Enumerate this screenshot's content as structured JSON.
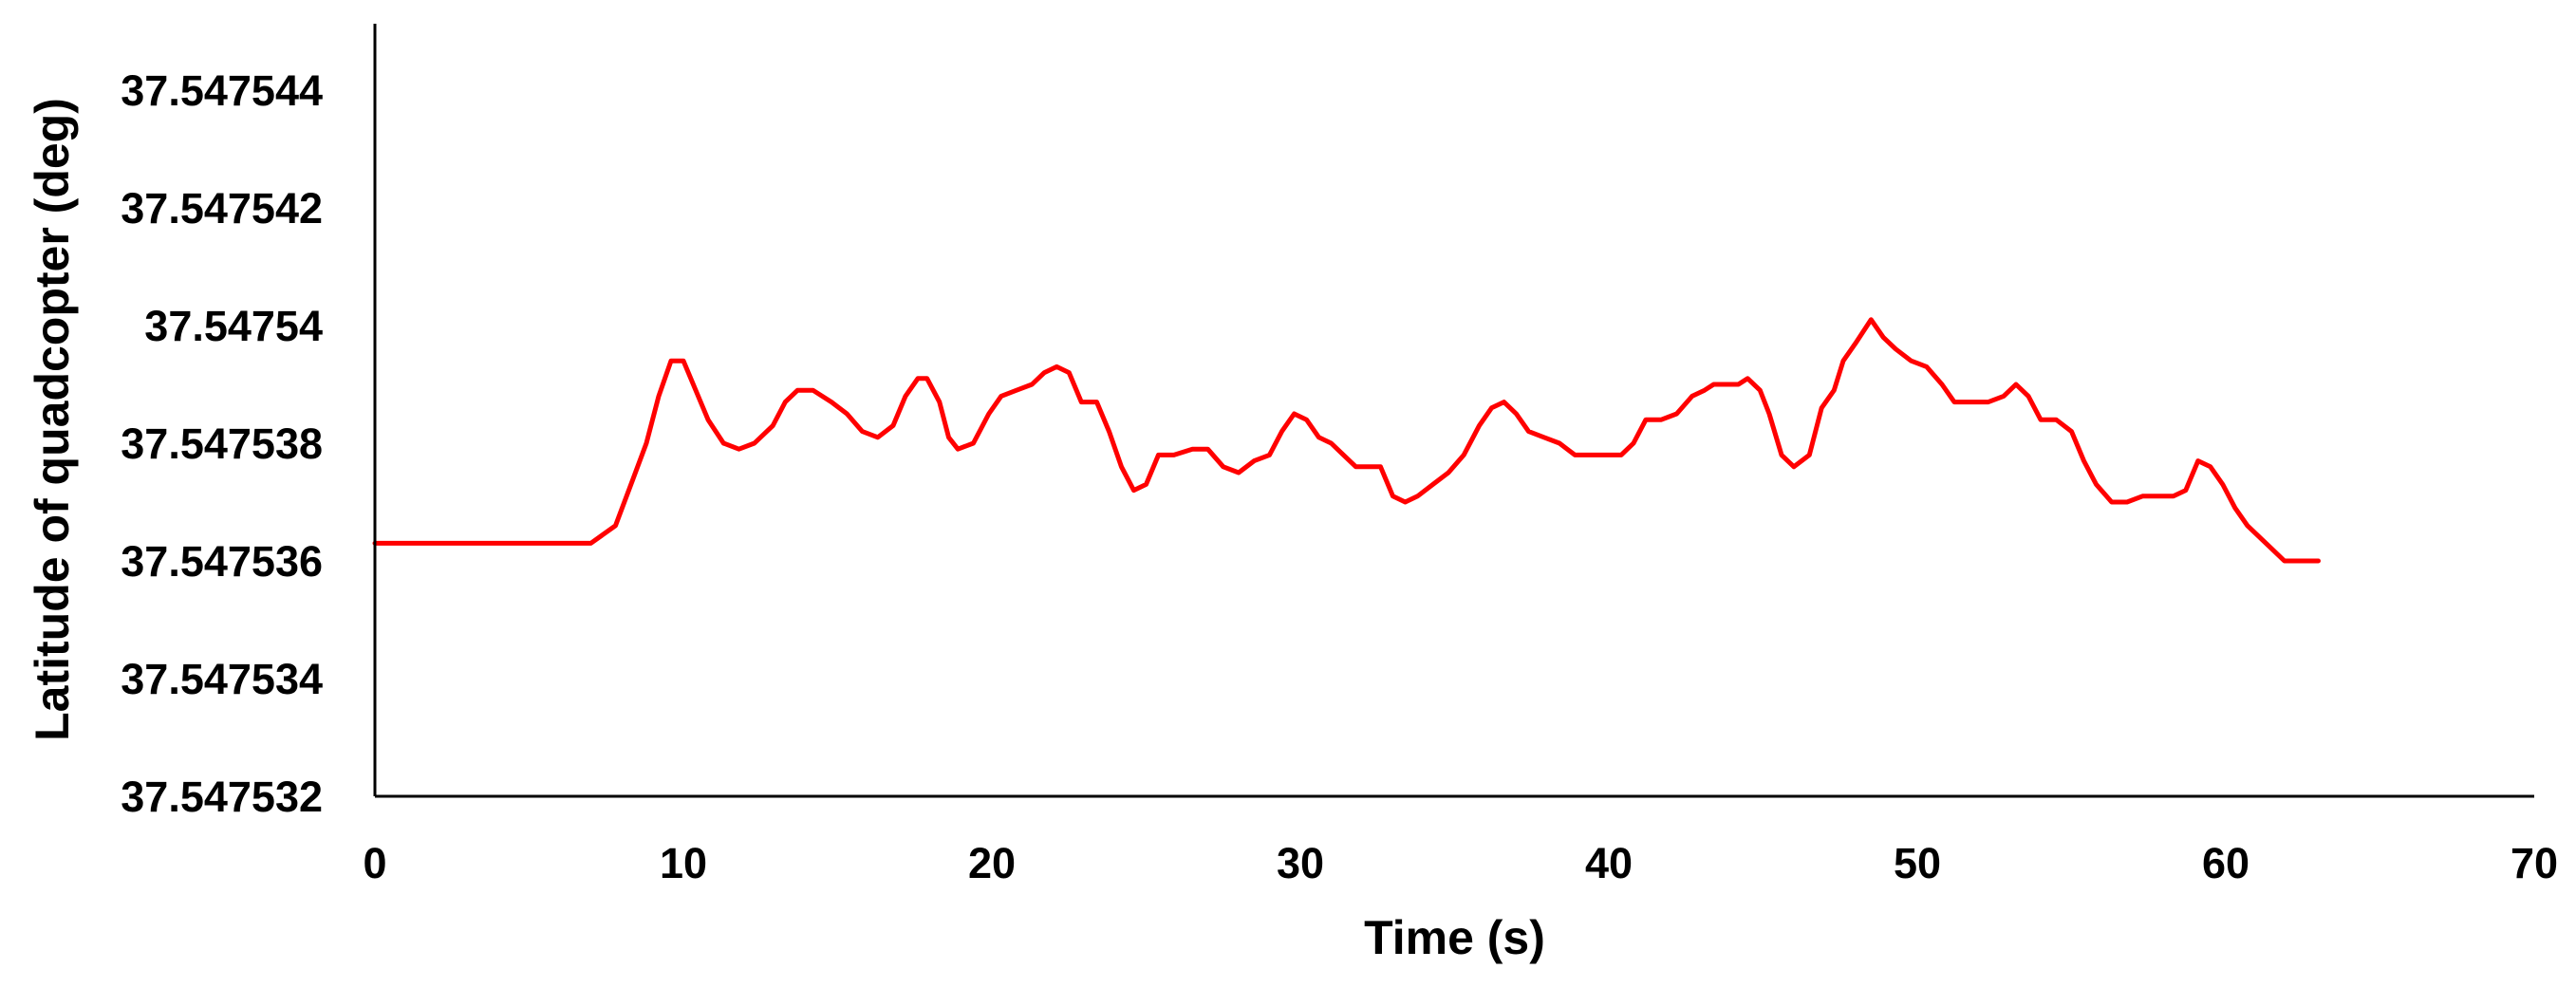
{
  "chart_data": {
    "type": "line",
    "title": "",
    "xlabel": "Time (s)",
    "ylabel": "Latitude of quadcopter (deg)",
    "xlim": [
      0,
      70
    ],
    "ylim": [
      37.547532,
      37.547545
    ],
    "x_ticks": [
      {
        "value": 0,
        "label": "0"
      },
      {
        "value": 10,
        "label": "10"
      },
      {
        "value": 20,
        "label": "20"
      },
      {
        "value": 30,
        "label": "30"
      },
      {
        "value": 40,
        "label": "40"
      },
      {
        "value": 50,
        "label": "50"
      },
      {
        "value": 60,
        "label": "60"
      },
      {
        "value": 70,
        "label": "70"
      }
    ],
    "y_ticks": [
      {
        "value": 37.547532,
        "label": "37.547532"
      },
      {
        "value": 37.547534,
        "label": "37.547534"
      },
      {
        "value": 37.547536,
        "label": "37.547536"
      },
      {
        "value": 37.547538,
        "label": "37.547538"
      },
      {
        "value": 37.54754,
        "label": "37.54754"
      },
      {
        "value": 37.547542,
        "label": "37.547542"
      },
      {
        "value": 37.547544,
        "label": "37.547544"
      }
    ],
    "grid": false,
    "legend": "none",
    "series": [
      {
        "color": "#ff0000",
        "points": [
          [
            0,
            37.5475363
          ],
          [
            7.0,
            37.5475363
          ],
          [
            7.8,
            37.5475366
          ],
          [
            8.3,
            37.5475373
          ],
          [
            8.8,
            37.547538
          ],
          [
            9.2,
            37.5475388
          ],
          [
            9.6,
            37.5475394
          ],
          [
            10.0,
            37.5475394
          ],
          [
            10.4,
            37.5475389
          ],
          [
            10.8,
            37.5475384
          ],
          [
            11.3,
            37.547538
          ],
          [
            11.8,
            37.5475379
          ],
          [
            12.3,
            37.547538
          ],
          [
            12.9,
            37.5475383
          ],
          [
            13.3,
            37.5475387
          ],
          [
            13.7,
            37.5475389
          ],
          [
            14.2,
            37.5475389
          ],
          [
            14.8,
            37.5475387
          ],
          [
            15.3,
            37.5475385
          ],
          [
            15.8,
            37.5475382
          ],
          [
            16.3,
            37.5475381
          ],
          [
            16.8,
            37.5475383
          ],
          [
            17.2,
            37.5475388
          ],
          [
            17.6,
            37.5475391
          ],
          [
            17.9,
            37.5475391
          ],
          [
            18.3,
            37.5475387
          ],
          [
            18.6,
            37.5475381
          ],
          [
            18.9,
            37.5475379
          ],
          [
            19.4,
            37.547538
          ],
          [
            19.9,
            37.5475385
          ],
          [
            20.3,
            37.5475388
          ],
          [
            20.8,
            37.5475389
          ],
          [
            21.3,
            37.547539
          ],
          [
            21.7,
            37.5475392
          ],
          [
            22.1,
            37.5475393
          ],
          [
            22.5,
            37.5475392
          ],
          [
            22.9,
            37.5475387
          ],
          [
            23.4,
            37.5475387
          ],
          [
            23.8,
            37.5475382
          ],
          [
            24.2,
            37.5475376
          ],
          [
            24.6,
            37.5475372
          ],
          [
            25.0,
            37.5475373
          ],
          [
            25.4,
            37.5475378
          ],
          [
            25.9,
            37.5475378
          ],
          [
            26.5,
            37.5475379
          ],
          [
            27.0,
            37.5475379
          ],
          [
            27.5,
            37.5475376
          ],
          [
            28.0,
            37.5475375
          ],
          [
            28.5,
            37.5475377
          ],
          [
            29.0,
            37.5475378
          ],
          [
            29.4,
            37.5475382
          ],
          [
            29.8,
            37.5475385
          ],
          [
            30.2,
            37.5475384
          ],
          [
            30.6,
            37.5475381
          ],
          [
            31.0,
            37.547538
          ],
          [
            31.4,
            37.5475378
          ],
          [
            31.8,
            37.5475376
          ],
          [
            32.2,
            37.5475376
          ],
          [
            32.6,
            37.5475376
          ],
          [
            33.0,
            37.5475371
          ],
          [
            33.4,
            37.547537
          ],
          [
            33.8,
            37.5475371
          ],
          [
            34.3,
            37.5475373
          ],
          [
            34.8,
            37.5475375
          ],
          [
            35.3,
            37.5475378
          ],
          [
            35.8,
            37.5475383
          ],
          [
            36.2,
            37.5475386
          ],
          [
            36.6,
            37.5475387
          ],
          [
            37.0,
            37.5475385
          ],
          [
            37.4,
            37.5475382
          ],
          [
            37.9,
            37.5475381
          ],
          [
            38.4,
            37.547538
          ],
          [
            38.9,
            37.5475378
          ],
          [
            39.4,
            37.5475378
          ],
          [
            39.9,
            37.5475378
          ],
          [
            40.4,
            37.5475378
          ],
          [
            40.8,
            37.547538
          ],
          [
            41.2,
            37.5475384
          ],
          [
            41.7,
            37.5475384
          ],
          [
            42.2,
            37.5475385
          ],
          [
            42.7,
            37.5475388
          ],
          [
            43.1,
            37.5475389
          ],
          [
            43.4,
            37.547539
          ],
          [
            43.8,
            37.547539
          ],
          [
            44.2,
            37.547539
          ],
          [
            44.5,
            37.5475391
          ],
          [
            44.9,
            37.5475389
          ],
          [
            45.2,
            37.5475385
          ],
          [
            45.6,
            37.5475378
          ],
          [
            46.0,
            37.5475376
          ],
          [
            46.5,
            37.5475378
          ],
          [
            46.9,
            37.5475386
          ],
          [
            47.3,
            37.5475389
          ],
          [
            47.6,
            37.5475394
          ],
          [
            48.0,
            37.5475397
          ],
          [
            48.5,
            37.5475401
          ],
          [
            48.9,
            37.5475398
          ],
          [
            49.3,
            37.5475396
          ],
          [
            49.8,
            37.5475394
          ],
          [
            50.3,
            37.5475393
          ],
          [
            50.8,
            37.547539
          ],
          [
            51.2,
            37.5475387
          ],
          [
            51.8,
            37.5475387
          ],
          [
            52.3,
            37.5475387
          ],
          [
            52.8,
            37.5475388
          ],
          [
            53.2,
            37.547539
          ],
          [
            53.6,
            37.5475388
          ],
          [
            54.0,
            37.5475384
          ],
          [
            54.5,
            37.5475384
          ],
          [
            55.0,
            37.5475382
          ],
          [
            55.4,
            37.5475377
          ],
          [
            55.8,
            37.5475373
          ],
          [
            56.3,
            37.547537
          ],
          [
            56.8,
            37.547537
          ],
          [
            57.3,
            37.5475371
          ],
          [
            57.8,
            37.5475371
          ],
          [
            58.3,
            37.5475371
          ],
          [
            58.7,
            37.5475372
          ],
          [
            59.1,
            37.5475377
          ],
          [
            59.5,
            37.5475376
          ],
          [
            59.9,
            37.5475373
          ],
          [
            60.3,
            37.5475369
          ],
          [
            60.7,
            37.5475366
          ],
          [
            61.1,
            37.5475364
          ],
          [
            61.5,
            37.5475362
          ],
          [
            61.9,
            37.547536
          ],
          [
            62.4,
            37.547536
          ],
          [
            63.0,
            37.547536
          ]
        ]
      }
    ]
  }
}
